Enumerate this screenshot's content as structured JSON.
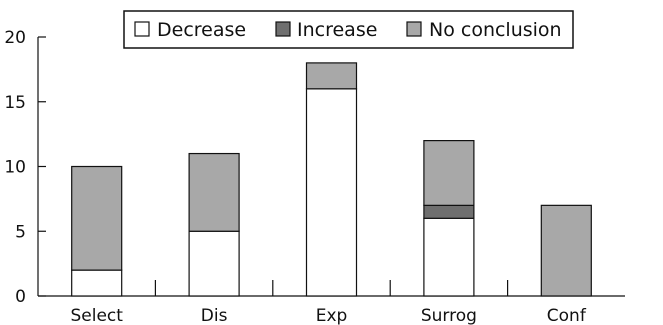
{
  "chart_data": {
    "type": "bar",
    "stacked": true,
    "categories": [
      "Select",
      "Dis",
      "Exp",
      "Surrog",
      "Conf"
    ],
    "series": [
      {
        "name": "Decrease",
        "values": [
          2,
          5,
          16,
          6,
          0
        ],
        "color": "#ffffff"
      },
      {
        "name": "Increase",
        "values": [
          0,
          0,
          0,
          1,
          0
        ],
        "color": "#6f6f6f"
      },
      {
        "name": "No conclusion",
        "values": [
          8,
          6,
          2,
          5,
          7
        ],
        "color": "#a8a8a8"
      }
    ],
    "title": "",
    "xlabel": "",
    "ylabel": "",
    "ylim": [
      0,
      20
    ],
    "yticks": [
      "0",
      "5",
      "10",
      "15",
      "20"
    ],
    "grid": false,
    "legend": "top-center"
  }
}
